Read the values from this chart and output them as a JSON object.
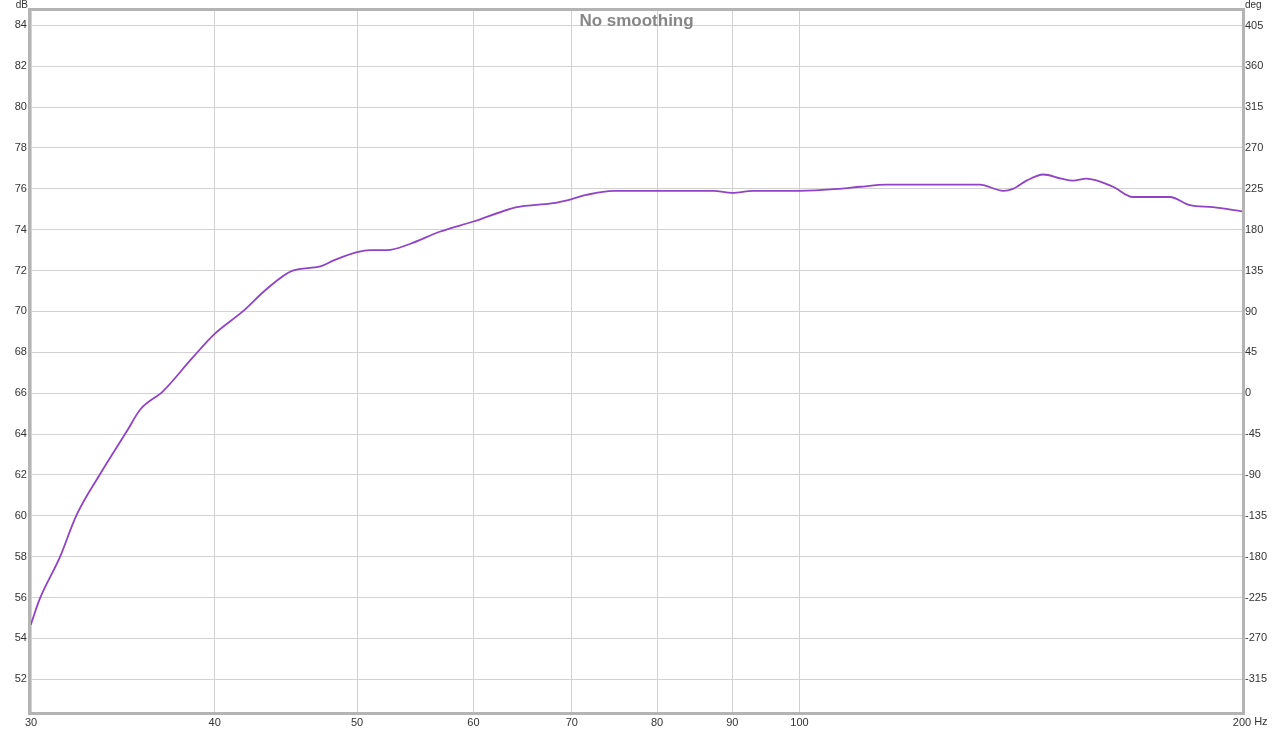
{
  "chart_data": {
    "type": "line",
    "title": "No smoothing",
    "xlabel": "Hz",
    "ylabel": "dB",
    "y2label": "deg",
    "x": [
      30,
      30.4,
      31.4,
      32.2,
      33.4,
      34.9,
      35.6,
      36.9,
      38.6,
      40,
      41.8,
      43.4,
      45.2,
      47.2,
      48.2,
      50,
      51,
      52.4,
      54.3,
      56.9,
      60,
      64.2,
      65.9,
      68,
      70,
      71.6,
      74.7,
      80,
      83.8,
      87.4,
      90,
      93,
      100,
      106.5,
      110,
      114.6,
      119.5,
      124.6,
      131.2,
      132.6,
      137.6,
      139.7,
      142.7,
      146.5,
      150.7,
      153.5,
      156.7,
      163.4,
      168.6,
      174,
      178.6,
      184.3,
      191.1,
      200
    ],
    "series": [
      {
        "color": "#9043c4",
        "values": [
          54.7,
          55.9,
          58.0,
          60.0,
          62.0,
          64.2,
          65.2,
          66.1,
          67.7,
          68.9,
          70.0,
          71.1,
          72.0,
          72.2,
          72.5,
          72.9,
          73.0,
          73.0,
          73.3,
          73.9,
          74.4,
          75.1,
          75.2,
          75.3,
          75.5,
          75.7,
          75.9,
          75.9,
          75.9,
          75.9,
          75.8,
          75.9,
          75.9,
          76.0,
          76.1,
          76.2,
          76.2,
          76.2,
          76.2,
          76.2,
          75.9,
          76.0,
          76.4,
          76.7,
          76.5,
          76.4,
          76.5,
          76.1,
          75.6,
          75.6,
          75.6,
          75.2,
          75.1,
          74.9
        ]
      }
    ],
    "log": "x",
    "xlim": [
      30,
      200
    ],
    "xticks": [
      30,
      40,
      50,
      60,
      70,
      80,
      90,
      100,
      200
    ],
    "ylim": [
      50.4,
      84.7
    ],
    "yticks": [
      52,
      54,
      56,
      58,
      60,
      62,
      64,
      66,
      68,
      70,
      72,
      74,
      76,
      78,
      80,
      82,
      84
    ],
    "y2lim": [
      -351,
      421
    ],
    "y2ticks": [
      -315,
      -270,
      -225,
      -180,
      -135,
      -90,
      -45,
      0,
      45,
      90,
      135,
      180,
      225,
      270,
      315,
      360,
      405
    ],
    "grid": true,
    "marker": "none",
    "line_style": "solid"
  }
}
